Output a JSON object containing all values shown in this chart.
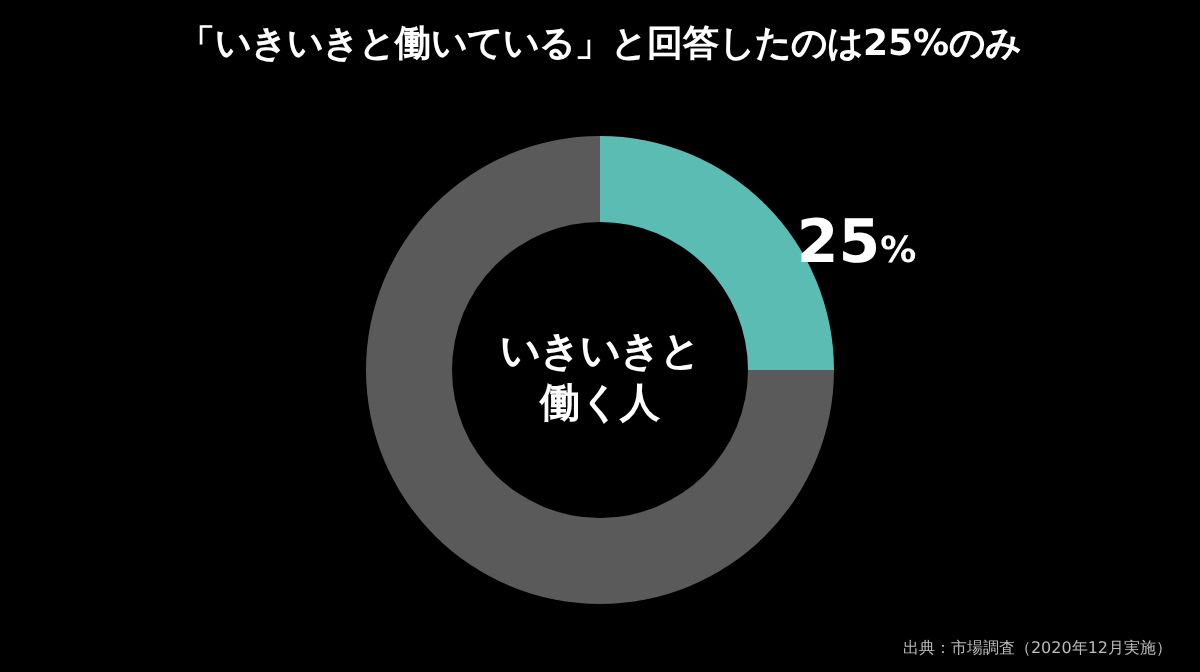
{
  "chart_data": {
    "type": "donut",
    "title": "「いきいきと働いている」と回答したのは25%のみ",
    "categories": [
      null,
      null
    ],
    "values": [
      25,
      75
    ],
    "colors": [
      "#5bbcb4",
      "#5a5a5a"
    ],
    "value_labels": [
      "25%",
      null
    ],
    "annotations": [
      "いきいきと働く人",
      "出典：市場調査（2020年12月実施）"
    ]
  }
}
